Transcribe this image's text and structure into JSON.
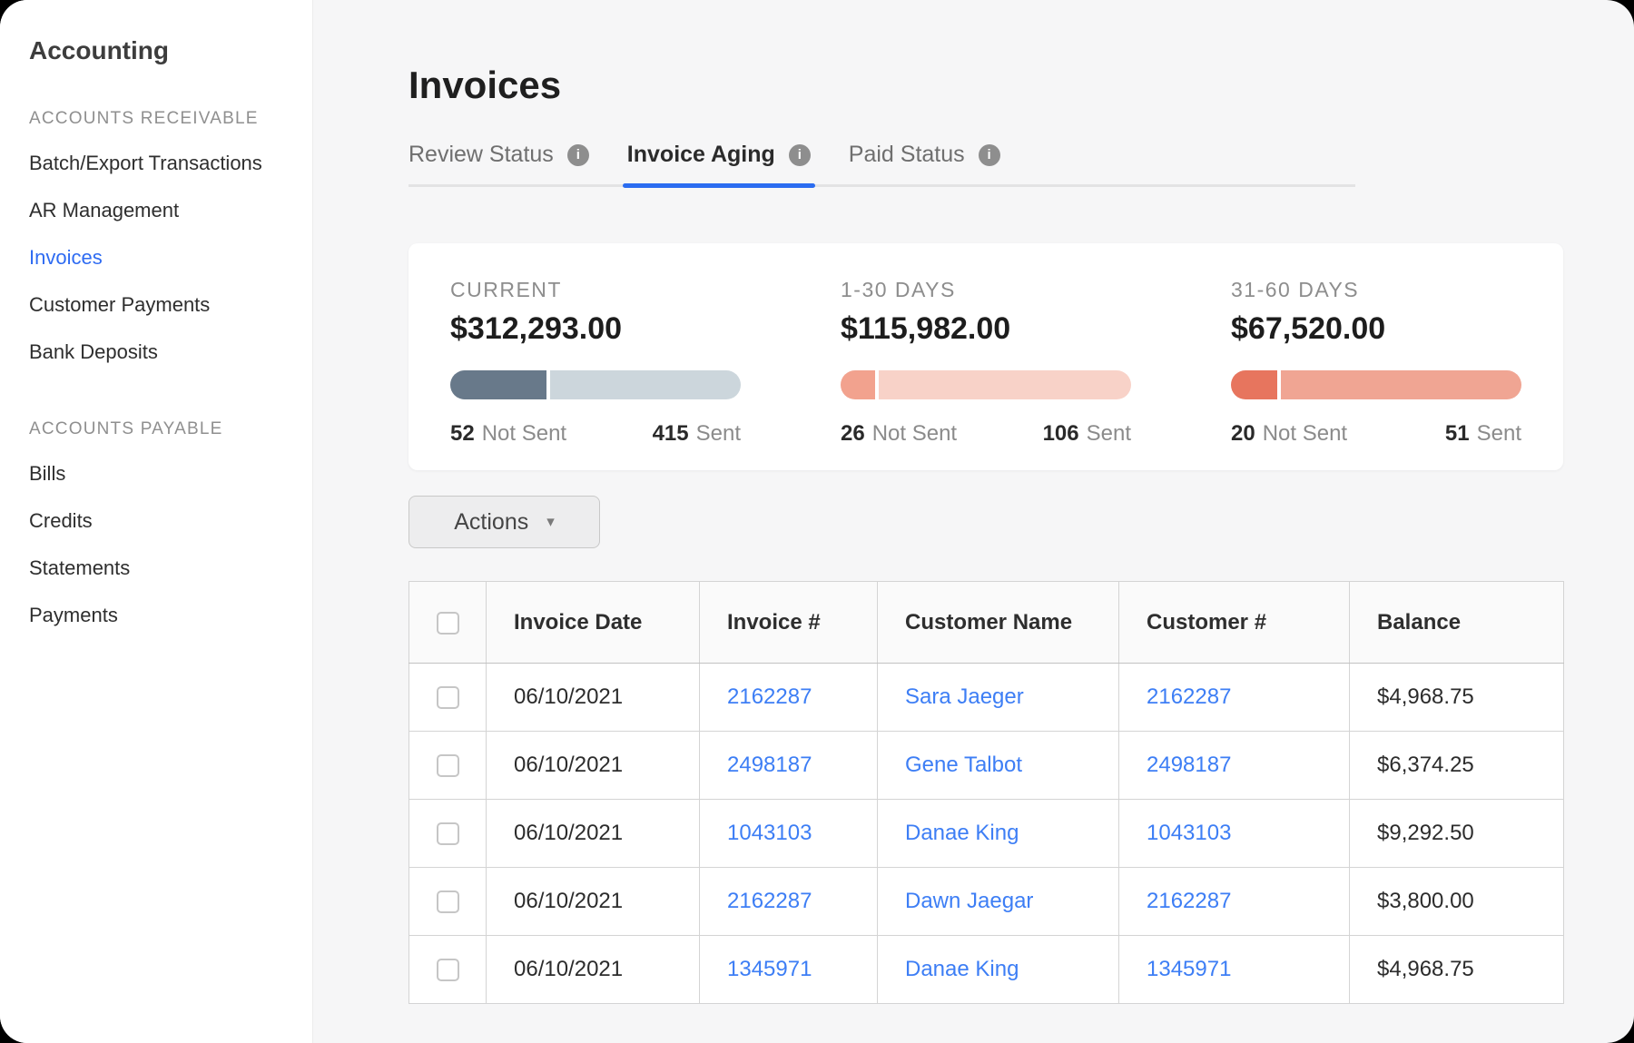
{
  "sidebar": {
    "title": "Accounting",
    "sections": [
      {
        "label": "ACCOUNTS RECEIVABLE",
        "items": [
          {
            "label": "Batch/Export Transactions",
            "active": false
          },
          {
            "label": "AR Management",
            "active": false
          },
          {
            "label": "Invoices",
            "active": true
          },
          {
            "label": "Customer Payments",
            "active": false
          },
          {
            "label": "Bank Deposits",
            "active": false
          }
        ]
      },
      {
        "label": "ACCOUNTS PAYABLE",
        "items": [
          {
            "label": "Bills",
            "active": false
          },
          {
            "label": "Credits",
            "active": false
          },
          {
            "label": "Statements",
            "active": false
          },
          {
            "label": "Payments",
            "active": false
          }
        ]
      }
    ]
  },
  "page": {
    "title": "Invoices"
  },
  "tabs": [
    {
      "label": "Review Status",
      "active": false
    },
    {
      "label": "Invoice Aging",
      "active": true
    },
    {
      "label": "Paid Status",
      "active": false
    }
  ],
  "icons": {
    "info_glyph": "i"
  },
  "summary": {
    "buckets": [
      {
        "label": "CURRENT",
        "amount": "$312,293.00",
        "not_sent_count": "52",
        "not_sent_label": "Not Sent",
        "sent_count": "415",
        "sent_label": "Sent",
        "fill_percent": 33,
        "fill_color": "#68798a",
        "track_color": "#ccd6dc"
      },
      {
        "label": "1-30 DAYS",
        "amount": "$115,982.00",
        "not_sent_count": "26",
        "not_sent_label": "Not Sent",
        "sent_count": "106",
        "sent_label": "Sent",
        "fill_percent": 12,
        "fill_color": "#f2a28e",
        "track_color": "#f8d2c8"
      },
      {
        "label": "31-60 DAYS",
        "amount": "$67,520.00",
        "not_sent_count": "20",
        "not_sent_label": "Not Sent",
        "sent_count": "51",
        "sent_label": "Sent",
        "fill_percent": 16,
        "fill_color": "#e7755e",
        "track_color": "#f0a593"
      }
    ]
  },
  "actions": {
    "label": "Actions",
    "caret_icon": "▾"
  },
  "table": {
    "columns": [
      "Invoice Date",
      "Invoice #",
      "Customer Name",
      "Customer #",
      "Balance"
    ],
    "rows": [
      {
        "invoice_date": "06/10/2021",
        "invoice_number": "2162287",
        "customer_name": "Sara Jaeger",
        "customer_number": "2162287",
        "balance": "$4,968.75"
      },
      {
        "invoice_date": "06/10/2021",
        "invoice_number": "2498187",
        "customer_name": "Gene Talbot",
        "customer_number": "2498187",
        "balance": "$6,374.25"
      },
      {
        "invoice_date": "06/10/2021",
        "invoice_number": "1043103",
        "customer_name": "Danae King",
        "customer_number": "1043103",
        "balance": "$9,292.50"
      },
      {
        "invoice_date": "06/10/2021",
        "invoice_number": "2162287",
        "customer_name": "Dawn Jaegar",
        "customer_number": "2162287",
        "balance": "$3,800.00"
      },
      {
        "invoice_date": "06/10/2021",
        "invoice_number": "1345971",
        "customer_name": "Danae King",
        "customer_number": "1345971",
        "balance": "$4,968.75"
      }
    ]
  },
  "colors": {
    "accent_blue": "#2b6cf0",
    "link_blue": "#3d7ef5",
    "current_fill": "#68798a",
    "current_track": "#ccd6dc",
    "days_1_30_fill": "#f2a28e",
    "days_1_30_track": "#f8d2c8",
    "days_31_60_fill": "#e7755e",
    "days_31_60_track": "#f0a593"
  }
}
